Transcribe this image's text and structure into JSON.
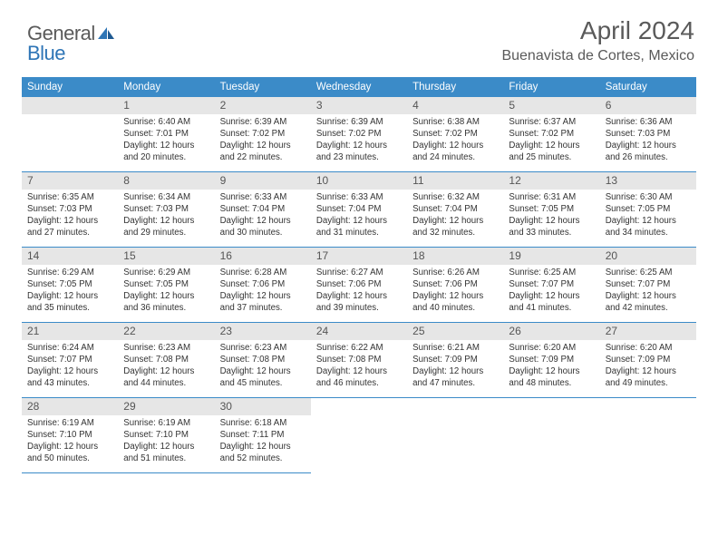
{
  "brand": {
    "word1": "General",
    "word2": "Blue"
  },
  "title": "April 2024",
  "location": "Buenavista de Cortes, Mexico",
  "colors": {
    "header_bg": "#3b8bc8",
    "daynum_bg": "#e6e6e6",
    "row_border": "#3b8bc8",
    "text_gray": "#5a5a5a",
    "accent_blue": "#2e75b6"
  },
  "dayHeaders": [
    "Sunday",
    "Monday",
    "Tuesday",
    "Wednesday",
    "Thursday",
    "Friday",
    "Saturday"
  ],
  "weeks": [
    [
      {
        "num": "",
        "lines": []
      },
      {
        "num": "1",
        "lines": [
          "Sunrise: 6:40 AM",
          "Sunset: 7:01 PM",
          "Daylight: 12 hours",
          "and 20 minutes."
        ]
      },
      {
        "num": "2",
        "lines": [
          "Sunrise: 6:39 AM",
          "Sunset: 7:02 PM",
          "Daylight: 12 hours",
          "and 22 minutes."
        ]
      },
      {
        "num": "3",
        "lines": [
          "Sunrise: 6:39 AM",
          "Sunset: 7:02 PM",
          "Daylight: 12 hours",
          "and 23 minutes."
        ]
      },
      {
        "num": "4",
        "lines": [
          "Sunrise: 6:38 AM",
          "Sunset: 7:02 PM",
          "Daylight: 12 hours",
          "and 24 minutes."
        ]
      },
      {
        "num": "5",
        "lines": [
          "Sunrise: 6:37 AM",
          "Sunset: 7:02 PM",
          "Daylight: 12 hours",
          "and 25 minutes."
        ]
      },
      {
        "num": "6",
        "lines": [
          "Sunrise: 6:36 AM",
          "Sunset: 7:03 PM",
          "Daylight: 12 hours",
          "and 26 minutes."
        ]
      }
    ],
    [
      {
        "num": "7",
        "lines": [
          "Sunrise: 6:35 AM",
          "Sunset: 7:03 PM",
          "Daylight: 12 hours",
          "and 27 minutes."
        ]
      },
      {
        "num": "8",
        "lines": [
          "Sunrise: 6:34 AM",
          "Sunset: 7:03 PM",
          "Daylight: 12 hours",
          "and 29 minutes."
        ]
      },
      {
        "num": "9",
        "lines": [
          "Sunrise: 6:33 AM",
          "Sunset: 7:04 PM",
          "Daylight: 12 hours",
          "and 30 minutes."
        ]
      },
      {
        "num": "10",
        "lines": [
          "Sunrise: 6:33 AM",
          "Sunset: 7:04 PM",
          "Daylight: 12 hours",
          "and 31 minutes."
        ]
      },
      {
        "num": "11",
        "lines": [
          "Sunrise: 6:32 AM",
          "Sunset: 7:04 PM",
          "Daylight: 12 hours",
          "and 32 minutes."
        ]
      },
      {
        "num": "12",
        "lines": [
          "Sunrise: 6:31 AM",
          "Sunset: 7:05 PM",
          "Daylight: 12 hours",
          "and 33 minutes."
        ]
      },
      {
        "num": "13",
        "lines": [
          "Sunrise: 6:30 AM",
          "Sunset: 7:05 PM",
          "Daylight: 12 hours",
          "and 34 minutes."
        ]
      }
    ],
    [
      {
        "num": "14",
        "lines": [
          "Sunrise: 6:29 AM",
          "Sunset: 7:05 PM",
          "Daylight: 12 hours",
          "and 35 minutes."
        ]
      },
      {
        "num": "15",
        "lines": [
          "Sunrise: 6:29 AM",
          "Sunset: 7:05 PM",
          "Daylight: 12 hours",
          "and 36 minutes."
        ]
      },
      {
        "num": "16",
        "lines": [
          "Sunrise: 6:28 AM",
          "Sunset: 7:06 PM",
          "Daylight: 12 hours",
          "and 37 minutes."
        ]
      },
      {
        "num": "17",
        "lines": [
          "Sunrise: 6:27 AM",
          "Sunset: 7:06 PM",
          "Daylight: 12 hours",
          "and 39 minutes."
        ]
      },
      {
        "num": "18",
        "lines": [
          "Sunrise: 6:26 AM",
          "Sunset: 7:06 PM",
          "Daylight: 12 hours",
          "and 40 minutes."
        ]
      },
      {
        "num": "19",
        "lines": [
          "Sunrise: 6:25 AM",
          "Sunset: 7:07 PM",
          "Daylight: 12 hours",
          "and 41 minutes."
        ]
      },
      {
        "num": "20",
        "lines": [
          "Sunrise: 6:25 AM",
          "Sunset: 7:07 PM",
          "Daylight: 12 hours",
          "and 42 minutes."
        ]
      }
    ],
    [
      {
        "num": "21",
        "lines": [
          "Sunrise: 6:24 AM",
          "Sunset: 7:07 PM",
          "Daylight: 12 hours",
          "and 43 minutes."
        ]
      },
      {
        "num": "22",
        "lines": [
          "Sunrise: 6:23 AM",
          "Sunset: 7:08 PM",
          "Daylight: 12 hours",
          "and 44 minutes."
        ]
      },
      {
        "num": "23",
        "lines": [
          "Sunrise: 6:23 AM",
          "Sunset: 7:08 PM",
          "Daylight: 12 hours",
          "and 45 minutes."
        ]
      },
      {
        "num": "24",
        "lines": [
          "Sunrise: 6:22 AM",
          "Sunset: 7:08 PM",
          "Daylight: 12 hours",
          "and 46 minutes."
        ]
      },
      {
        "num": "25",
        "lines": [
          "Sunrise: 6:21 AM",
          "Sunset: 7:09 PM",
          "Daylight: 12 hours",
          "and 47 minutes."
        ]
      },
      {
        "num": "26",
        "lines": [
          "Sunrise: 6:20 AM",
          "Sunset: 7:09 PM",
          "Daylight: 12 hours",
          "and 48 minutes."
        ]
      },
      {
        "num": "27",
        "lines": [
          "Sunrise: 6:20 AM",
          "Sunset: 7:09 PM",
          "Daylight: 12 hours",
          "and 49 minutes."
        ]
      }
    ],
    [
      {
        "num": "28",
        "lines": [
          "Sunrise: 6:19 AM",
          "Sunset: 7:10 PM",
          "Daylight: 12 hours",
          "and 50 minutes."
        ]
      },
      {
        "num": "29",
        "lines": [
          "Sunrise: 6:19 AM",
          "Sunset: 7:10 PM",
          "Daylight: 12 hours",
          "and 51 minutes."
        ]
      },
      {
        "num": "30",
        "lines": [
          "Sunrise: 6:18 AM",
          "Sunset: 7:11 PM",
          "Daylight: 12 hours",
          "and 52 minutes."
        ]
      },
      {
        "num": "",
        "lines": []
      },
      {
        "num": "",
        "lines": []
      },
      {
        "num": "",
        "lines": []
      },
      {
        "num": "",
        "lines": []
      }
    ]
  ]
}
